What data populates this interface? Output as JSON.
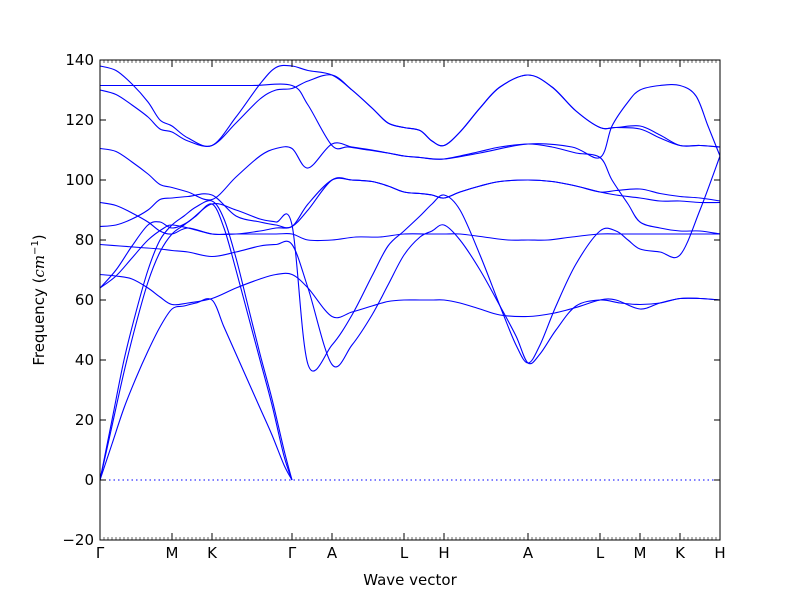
{
  "chart_data": {
    "type": "line",
    "title": "",
    "xlabel": "Wave vector",
    "ylabel_text": "Frequency (",
    "ylabel_math": "cm",
    "ylabel_exp": "−1",
    "ylabel_close": ")",
    "ylim": [
      -20,
      140
    ],
    "yticks": [
      -20,
      0,
      20,
      40,
      60,
      80,
      100,
      120,
      140
    ],
    "ytick_labels": [
      "−20",
      "0",
      "20",
      "40",
      "60",
      "80",
      "100",
      "120",
      "140"
    ],
    "xlim": [
      0,
      15.5
    ],
    "xticks": [
      0,
      1.8,
      2.8,
      4.8,
      5.8,
      7.6,
      8.6,
      10.7,
      12.5,
      13.5,
      14.5,
      15.5
    ],
    "xtick_labels": [
      "Γ",
      "M",
      "K",
      "Γ",
      "A",
      "L",
      "H",
      "A",
      "L",
      "M",
      "K",
      "H"
    ],
    "zero_line": 0,
    "line_color": "#0000ff",
    "series": [
      {
        "x": [
          0,
          0.3,
          0.6,
          0.9,
          1.2,
          1.5,
          1.8,
          2.1,
          2.4,
          2.8,
          3.1,
          3.4,
          3.7,
          4.0,
          4.3,
          4.6,
          4.8
        ],
        "values": [
          0,
          12,
          24,
          34,
          43,
          51,
          57,
          58,
          59,
          60,
          51,
          42,
          33,
          24,
          15,
          5,
          0
        ]
      },
      {
        "x": [
          0,
          0.3,
          0.6,
          0.9,
          1.2,
          1.5,
          1.8,
          2.1,
          2.4,
          2.8,
          3.1,
          3.4,
          3.7,
          4.0,
          4.3,
          4.6,
          4.8
        ],
        "values": [
          0,
          18,
          36,
          52,
          66,
          76,
          82,
          85,
          88,
          92,
          84,
          70,
          55,
          40,
          25,
          8,
          0
        ]
      },
      {
        "x": [
          0,
          0.3,
          0.6,
          0.9,
          1.2,
          1.5,
          1.8,
          2.1,
          2.4,
          2.8,
          3.1,
          3.4,
          3.7,
          4.0,
          4.3,
          4.6,
          4.8
        ],
        "values": [
          0,
          20,
          40,
          56,
          70,
          80,
          85,
          88,
          91,
          93,
          87,
          74,
          58,
          42,
          27,
          10,
          0
        ]
      },
      {
        "x": [
          0,
          0.4,
          0.8,
          1.2,
          1.6,
          1.8,
          2.2,
          2.8,
          3.2,
          3.8,
          4.4,
          4.8,
          5.2,
          5.8,
          6.4,
          7.0,
          7.6,
          8.2,
          8.6,
          9.0,
          9.6,
          10.2,
          10.7,
          11.2,
          11.8,
          12.5,
          13.0,
          13.5,
          14.0,
          14.5,
          15.0,
          15.5
        ],
        "values": [
          64,
          68,
          74,
          80,
          84,
          85,
          84,
          82,
          82,
          82,
          82,
          82,
          80,
          80,
          81,
          81,
          82,
          82,
          82,
          82,
          81,
          80,
          80,
          80,
          81,
          82,
          82,
          82,
          82,
          82,
          82,
          82
        ]
      },
      {
        "x": [
          0,
          0.4,
          0.8,
          1.2,
          1.5,
          1.8,
          2.2,
          2.8,
          3.4,
          4.0,
          4.4,
          4.8,
          5.2,
          5.8,
          6.3,
          6.8,
          7.2,
          7.6,
          8.0,
          8.3,
          8.6,
          9.0,
          9.5,
          10.0,
          10.7,
          11.3,
          11.9,
          12.5,
          12.9,
          13.5,
          14.0,
          14.5,
          15.0,
          15.5
        ],
        "values": [
          68.5,
          68,
          67,
          64,
          61,
          58.5,
          59,
          60.5,
          64,
          67,
          68.5,
          68.5,
          64,
          54.5,
          56,
          58,
          59.5,
          60,
          60,
          60,
          60,
          59,
          57,
          55,
          54.5,
          55.5,
          57.5,
          60,
          60,
          57,
          59,
          60.5,
          60.5,
          60
        ]
      },
      {
        "x": [
          0,
          0.5,
          1.0,
          1.5,
          1.8,
          2.2,
          2.8,
          3.4,
          4.0,
          4.4,
          4.8,
          5.2,
          5.8,
          6.3,
          6.8,
          7.2,
          7.6,
          8.0,
          8.3,
          8.6,
          9.0,
          9.5,
          10.0,
          10.4,
          10.7,
          11.0,
          11.4,
          11.9,
          12.5,
          13.0,
          13.5,
          14.0,
          14.5,
          15.0,
          15.5
        ],
        "values": [
          78.5,
          78,
          77.5,
          77,
          76.5,
          76,
          74.5,
          76,
          78,
          78.5,
          78.5,
          64,
          38.5,
          45,
          55,
          65,
          75,
          81,
          83,
          85,
          80,
          70,
          58,
          48,
          39,
          42,
          50,
          58,
          60,
          59,
          58.5,
          59,
          60.5,
          60.5,
          60
        ]
      },
      {
        "x": [
          0,
          0.4,
          0.8,
          1.2,
          1.5,
          1.8,
          2.2,
          2.8,
          3.4,
          4.0,
          4.4,
          4.8,
          5.2,
          5.8,
          6.3,
          6.8,
          7.2,
          7.6,
          8.0,
          8.3,
          8.6,
          9.0,
          9.5,
          10.0,
          10.4,
          10.7,
          11.0,
          11.4,
          11.9,
          12.5,
          12.9,
          13.2,
          13.5,
          14.0,
          14.5,
          15.0,
          15.5
        ],
        "values": [
          64,
          70,
          78,
          85,
          86,
          84,
          86,
          92,
          90,
          87,
          86,
          85,
          38.5,
          45,
          55,
          68,
          78,
          83,
          88,
          92,
          95,
          90,
          75,
          58,
          45,
          39,
          45,
          58,
          72,
          83,
          83,
          80,
          77,
          76,
          75,
          90,
          108
        ]
      },
      {
        "x": [
          0,
          0.4,
          0.8,
          1.2,
          1.5,
          1.8,
          2.2,
          2.8,
          3.4,
          4.0,
          4.4,
          4.8,
          5.2,
          5.8,
          6.3,
          6.8,
          7.2,
          7.6,
          8.0,
          8.3,
          8.6,
          9.0,
          9.5,
          10.0,
          10.7,
          11.3,
          11.9,
          12.5,
          12.9,
          13.5,
          14.0,
          14.5,
          15.0,
          15.5
        ],
        "values": [
          92.5,
          91.5,
          89,
          86,
          83,
          82,
          84,
          82,
          82,
          83,
          84,
          84.5,
          90,
          100,
          100,
          99.5,
          98,
          96,
          95.5,
          95,
          94,
          96,
          98,
          99.5,
          100,
          99.5,
          98,
          96,
          95,
          94,
          93,
          93,
          92.5,
          92.5
        ]
      },
      {
        "x": [
          0,
          0.4,
          0.8,
          1.2,
          1.5,
          1.8,
          2.2,
          2.8,
          3.4,
          4.0,
          4.4,
          4.8,
          5.2,
          5.8,
          6.3,
          6.8,
          7.2,
          7.6,
          8.0,
          8.3,
          8.6,
          9.0,
          9.5,
          10.0,
          10.7,
          11.3,
          11.9,
          12.5,
          12.9,
          13.5,
          14.0,
          14.5,
          15.0,
          15.5
        ],
        "values": [
          84.5,
          85,
          87,
          90,
          93.5,
          94,
          94.5,
          95,
          88,
          86,
          85,
          84.5,
          92,
          100,
          100,
          99.5,
          98,
          96,
          95.5,
          95,
          94,
          96,
          98,
          99.5,
          100,
          99.5,
          98,
          96,
          96.5,
          97,
          95.5,
          94.5,
          94,
          93
        ]
      },
      {
        "x": [
          0,
          0.4,
          0.8,
          1.2,
          1.5,
          1.8,
          2.2,
          2.8,
          3.4,
          4.0,
          4.4,
          4.8,
          5.2,
          5.8,
          6.3,
          6.8,
          7.2,
          7.6,
          8.0,
          8.3,
          8.6,
          9.0,
          9.5,
          10.0,
          10.7,
          11.3,
          11.9,
          12.5,
          12.8,
          13.2,
          13.5,
          14.0,
          14.5,
          15.0,
          15.5
        ],
        "values": [
          110.5,
          109.5,
          106,
          102,
          98.5,
          97.5,
          96,
          93.5,
          101,
          108,
          110.5,
          110.5,
          104,
          112,
          111,
          110,
          109,
          108,
          107.5,
          107,
          107,
          108,
          109.5,
          111,
          112,
          111,
          109,
          107.5,
          100,
          92,
          86,
          84,
          83,
          83,
          82
        ]
      },
      {
        "x": [
          0,
          0.4,
          0.8,
          1.2,
          1.5,
          1.8,
          2.2,
          2.8,
          3.4,
          4.0,
          4.4,
          4.8,
          5.2,
          5.8,
          6.3,
          6.8,
          7.2,
          7.6,
          8.0,
          8.3,
          8.6,
          9.0,
          9.5,
          10.0,
          10.7,
          11.3,
          11.9,
          12.5,
          12.9,
          13.5,
          14.0,
          14.5,
          15.0,
          15.5
        ],
        "values": [
          130,
          128.5,
          125,
          121,
          117,
          116,
          113,
          111.5,
          119,
          127,
          130,
          130.5,
          133,
          135,
          130,
          124,
          119,
          117.5,
          116.5,
          113,
          111.5,
          116,
          124,
          131,
          135,
          131,
          123,
          117.5,
          117.5,
          117,
          114,
          111.5,
          111.5,
          111
        ]
      },
      {
        "x": [
          0,
          0.4,
          0.8,
          1.2,
          1.5,
          1.8,
          2.2,
          2.8,
          3.4,
          4.0,
          4.4,
          4.8,
          5.2,
          5.8,
          6.3,
          6.8,
          7.2,
          7.6,
          8.0,
          8.3,
          8.6,
          9.0,
          9.5,
          10.0,
          10.7,
          11.3,
          11.9,
          12.5,
          12.9,
          13.5,
          14.0,
          14.5,
          15.0,
          15.5
        ],
        "values": [
          138,
          136.5,
          132,
          126,
          120,
          118,
          114,
          111.5,
          121,
          132,
          137.5,
          138,
          136.5,
          135,
          130,
          124,
          119,
          117.5,
          116.5,
          113,
          111.5,
          116,
          124,
          131,
          135,
          131,
          123,
          117.5,
          117.5,
          118,
          115,
          111.5,
          111.5,
          111
        ]
      },
      {
        "x": [
          0,
          1.0,
          1.8,
          2.8,
          3.8,
          4.8,
          5.2,
          5.8,
          6.2,
          6.7,
          7.2,
          7.6,
          8.0,
          8.6,
          9.5,
          10.7,
          11.8,
          12.5,
          12.8,
          13.2,
          13.5,
          14.0,
          14.5,
          14.9,
          15.2,
          15.5
        ],
        "values": [
          131.5,
          131.5,
          131.5,
          131.5,
          131.5,
          131.5,
          125,
          111.5,
          111,
          110,
          109,
          108,
          107.5,
          107,
          109,
          112,
          111,
          107.5,
          118,
          126,
          130,
          131.5,
          131.5,
          128,
          118,
          108
        ]
      }
    ]
  }
}
